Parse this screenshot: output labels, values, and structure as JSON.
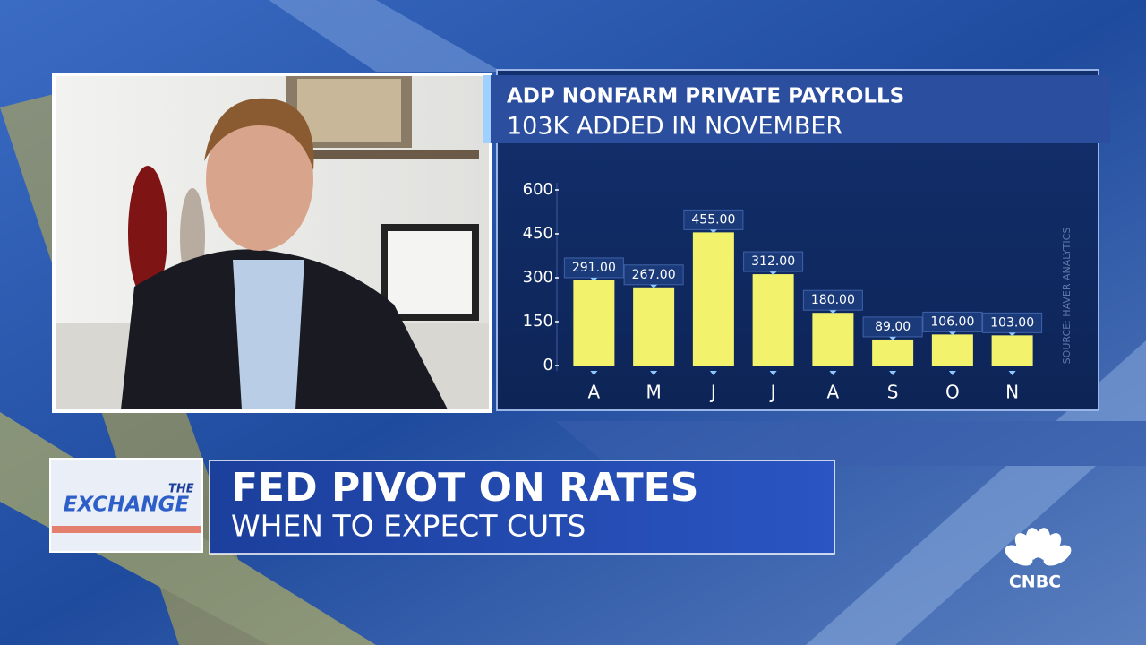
{
  "chart_data": {
    "type": "bar",
    "title": "ADP NONFARM PRIVATE PAYROLLS",
    "subtitle": "103K ADDED IN NOVEMBER",
    "source": "SOURCE: HAVER ANALYTICS",
    "categories": [
      "A",
      "M",
      "J",
      "J",
      "A",
      "S",
      "O",
      "N"
    ],
    "values": [
      291,
      267,
      455,
      312,
      180,
      89,
      106,
      103
    ],
    "value_labels": [
      "291.00",
      "267.00",
      "455.00",
      "312.00",
      "180.00",
      "89.00",
      "106.00",
      "103.00"
    ],
    "color": "#f2f26c",
    "ylim": [
      0,
      600
    ],
    "yticks": [
      0,
      150,
      300,
      450,
      600
    ],
    "grid": false
  },
  "show_logo": {
    "small": "THE",
    "main": "EXCHANGE"
  },
  "lower_third": {
    "headline": "FED PIVOT ON RATES",
    "subhead": "WHEN TO EXPECT CUTS"
  },
  "network_logo": "CNBC"
}
